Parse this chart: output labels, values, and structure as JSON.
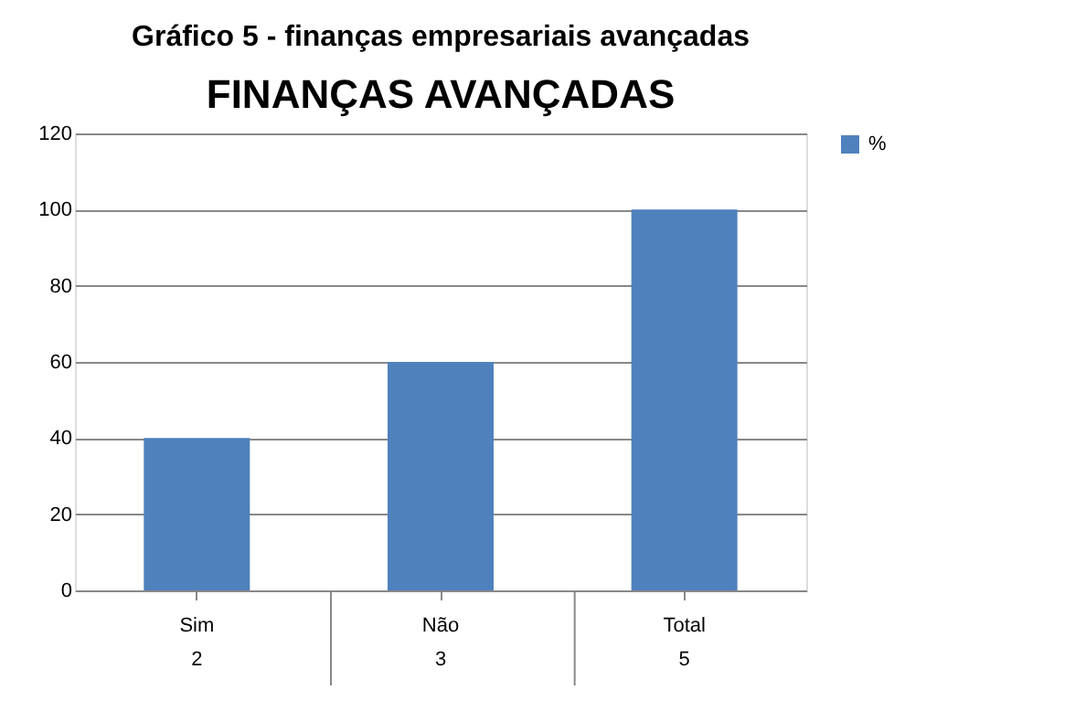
{
  "chart_data": {
    "type": "bar",
    "title": "Gráfico 5 - finanças empresariais avançadas",
    "subtitle": "FINANÇAS AVANÇADAS",
    "categories": [
      "Sim",
      "Não",
      "Total"
    ],
    "series": [
      {
        "name": "%",
        "color": "#4f81bd",
        "values": [
          40,
          60,
          100
        ]
      }
    ],
    "ylim": [
      0,
      120
    ],
    "yticks": [
      0,
      20,
      40,
      60,
      80,
      100,
      120
    ],
    "grid": "y",
    "legend": "right",
    "annotations": [
      "2",
      "3",
      "5"
    ]
  }
}
